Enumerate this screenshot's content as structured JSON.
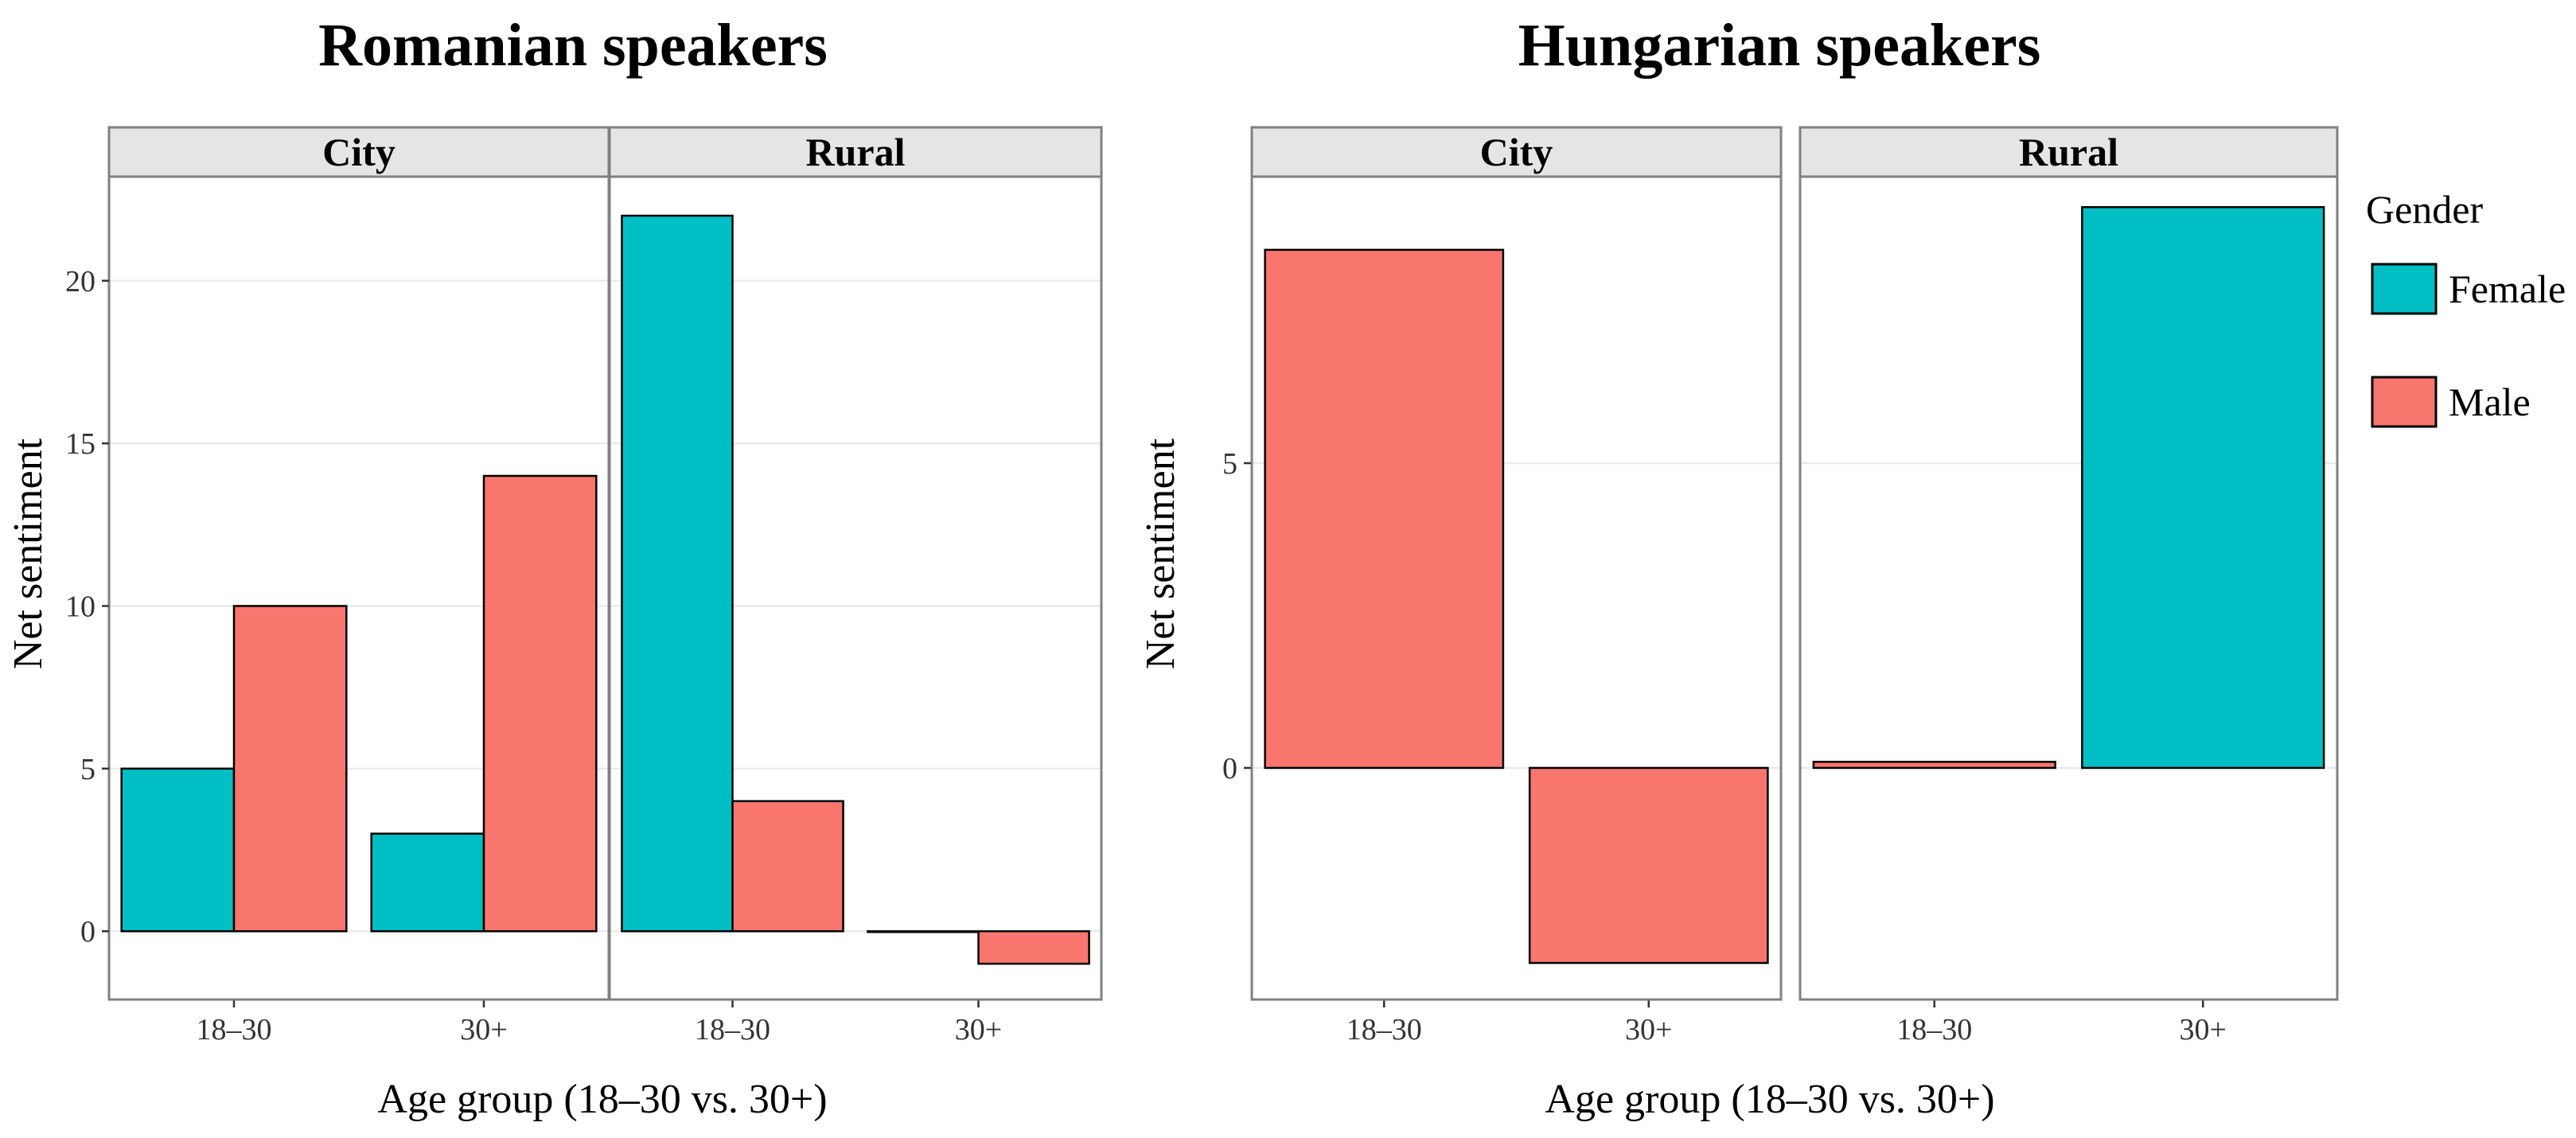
{
  "chart_data": [
    {
      "type": "bar",
      "title": "Romanian speakers",
      "xlabel": "Age group (18–30 vs. 30+)",
      "ylabel": "Net sentiment",
      "ylim": [
        -2.1,
        23.2
      ],
      "yticks": [
        0,
        5,
        10,
        15,
        20
      ],
      "ytick_labels": [
        "0",
        "5",
        "10",
        "15",
        "20"
      ],
      "panels": [
        {
          "label": "City",
          "categories": [
            "18–30",
            "30+"
          ],
          "series": [
            {
              "name": "Female",
              "values": [
                5,
                3
              ]
            },
            {
              "name": "Male",
              "values": [
                10,
                14
              ]
            }
          ]
        },
        {
          "label": "Rural",
          "categories": [
            "18–30",
            "30+"
          ],
          "series": [
            {
              "name": "Female",
              "values": [
                22,
                0
              ]
            },
            {
              "name": "Male",
              "values": [
                4,
                -1
              ]
            }
          ]
        }
      ]
    },
    {
      "type": "bar",
      "title": "Hungarian speakers",
      "xlabel": "Age group (18–30 vs. 30+)",
      "ylabel": "Net sentiment",
      "ylim": [
        -3.8,
        9.7
      ],
      "yticks": [
        0,
        5
      ],
      "ytick_labels": [
        "0",
        "5"
      ],
      "panels": [
        {
          "label": "City",
          "categories": [
            "18–30",
            "30+"
          ],
          "series": [
            {
              "name": "Male",
              "values": [
                8.5,
                -3.2
              ]
            }
          ]
        },
        {
          "label": "Rural",
          "categories": [
            "18–30",
            "30+"
          ],
          "series": [
            {
              "name": "Male",
              "values": [
                0.1,
                null
              ]
            },
            {
              "name": "Female",
              "values": [
                null,
                9.2
              ]
            }
          ]
        }
      ]
    }
  ],
  "legend": {
    "title": "Gender",
    "entries": [
      {
        "name": "Female",
        "color": "#00BFC4"
      },
      {
        "name": "Male",
        "color": "#F8766D"
      }
    ],
    "placement": "right"
  },
  "colors": {
    "Female": "#00BFC4",
    "Male": "#F8766D",
    "strip_fill": "#E5E5E5",
    "panel_border": "#808080",
    "grid": "#EBEBEB"
  }
}
